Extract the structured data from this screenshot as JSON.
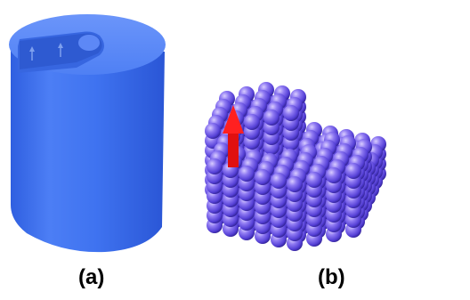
{
  "panels": [
    {
      "id": "a",
      "label": "(a)",
      "subject": "cylinder-with-notch"
    },
    {
      "id": "b",
      "label": "(b)",
      "subject": "sphere-lattice-hexagonal-prism"
    }
  ],
  "colors": {
    "cylinder_body": "#3f73f0",
    "cylinder_top": "#5f8cf7",
    "sphere_light": "#b9a6ff",
    "sphere_mid": "#6a55e6",
    "sphere_dark": "#2b1d8c",
    "arrow": "#ff1a1a",
    "label_text": "#000000",
    "background": "#ffffff"
  },
  "icons": [
    "up-arrow-icon"
  ]
}
